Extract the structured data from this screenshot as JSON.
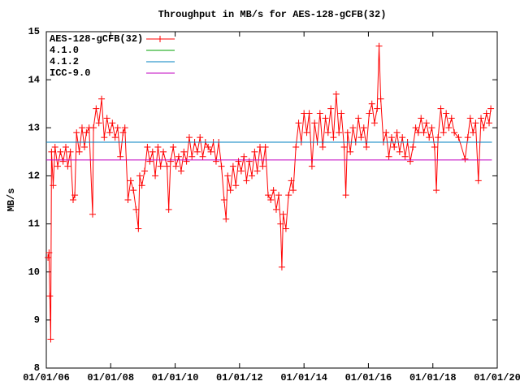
{
  "chart_data": {
    "type": "line",
    "title": "Throughput in MB/s for AES-128-gCFB(32)",
    "y_label": "MB/s",
    "xlim": [
      "2006-01-01",
      "2020-01-01"
    ],
    "xticks": [
      {
        "value": "2006-01-01",
        "label": "01/01/06"
      },
      {
        "value": "2008-01-01",
        "label": "01/01/08"
      },
      {
        "value": "2010-01-01",
        "label": "01/01/10"
      },
      {
        "value": "2012-01-01",
        "label": "01/01/12"
      },
      {
        "value": "2014-01-01",
        "label": "01/01/14"
      },
      {
        "value": "2016-01-01",
        "label": "01/01/16"
      },
      {
        "value": "2018-01-01",
        "label": "01/01/18"
      },
      {
        "value": "2020-01-01",
        "label": "01/01/20"
      }
    ],
    "ylim": [
      8,
      15
    ],
    "yticks": [
      8,
      9,
      10,
      11,
      12,
      13,
      14,
      15
    ],
    "grid": false,
    "legend": "top-left",
    "series": [
      {
        "name": "AES-128-gCFB(32)",
        "color": "#ff0000",
        "marker": "+",
        "x": [
          "2006-01-20",
          "2006-02-01",
          "2006-02-10",
          "2006-02-20",
          "2006-03-01",
          "2006-03-20",
          "2006-04-10",
          "2006-05-10",
          "2006-06-10",
          "2006-07-10",
          "2006-08-10",
          "2006-09-01",
          "2006-10-01",
          "2006-11-01",
          "2006-11-20",
          "2006-12-10",
          "2007-01-10",
          "2007-02-10",
          "2007-03-10",
          "2007-04-01",
          "2007-05-01",
          "2007-06-10",
          "2007-06-20",
          "2007-07-20",
          "2007-08-20",
          "2007-09-20",
          "2007-10-20",
          "2007-11-20",
          "2007-12-20",
          "2008-01-20",
          "2008-02-20",
          "2008-03-20",
          "2008-04-20",
          "2008-05-20",
          "2008-06-10",
          "2008-07-15",
          "2008-08-15",
          "2008-09-15",
          "2008-10-15",
          "2008-11-10",
          "2008-11-25",
          "2008-12-20",
          "2009-01-20",
          "2009-02-20",
          "2009-03-20",
          "2009-04-20",
          "2009-05-20",
          "2009-06-20",
          "2009-07-20",
          "2009-08-20",
          "2009-10-01",
          "2009-10-20",
          "2009-11-10",
          "2009-12-10",
          "2010-01-10",
          "2010-02-10",
          "2010-03-10",
          "2010-04-10",
          "2010-05-10",
          "2010-06-10",
          "2010-07-10",
          "2010-08-10",
          "2010-09-10",
          "2010-10-10",
          "2010-11-10",
          "2010-12-10",
          "2011-01-10",
          "2011-02-10",
          "2011-03-10",
          "2011-04-10",
          "2011-05-10",
          "2011-06-10",
          "2011-07-10",
          "2011-08-01",
          "2011-08-20",
          "2011-09-20",
          "2011-10-20",
          "2011-11-20",
          "2011-12-20",
          "2012-01-20",
          "2012-02-20",
          "2012-03-20",
          "2012-04-20",
          "2012-05-20",
          "2012-06-20",
          "2012-07-20",
          "2012-08-20",
          "2012-09-20",
          "2012-10-20",
          "2012-11-20",
          "2012-12-20",
          "2013-01-20",
          "2013-02-20",
          "2013-03-20",
          "2013-04-10",
          "2013-04-25",
          "2013-05-10",
          "2013-06-10",
          "2013-07-10",
          "2013-08-10",
          "2013-09-01",
          "2013-10-01",
          "2013-11-01",
          "2013-12-01",
          "2014-01-01",
          "2014-02-01",
          "2014-03-01",
          "2014-04-01",
          "2014-05-01",
          "2014-06-01",
          "2014-07-01",
          "2014-08-01",
          "2014-09-01",
          "2014-10-01",
          "2014-11-01",
          "2014-12-01",
          "2015-01-01",
          "2015-02-01",
          "2015-03-01",
          "2015-04-01",
          "2015-04-20",
          "2015-05-10",
          "2015-06-10",
          "2015-07-10",
          "2015-08-10",
          "2015-09-10",
          "2015-10-10",
          "2015-11-10",
          "2015-12-10",
          "2016-01-10",
          "2016-02-10",
          "2016-03-10",
          "2016-04-10",
          "2016-05-01",
          "2016-05-20",
          "2016-06-20",
          "2016-07-20",
          "2016-08-20",
          "2016-09-20",
          "2016-10-20",
          "2016-11-20",
          "2016-12-20",
          "2017-01-20",
          "2017-02-20",
          "2017-03-20",
          "2017-04-20",
          "2017-05-20",
          "2017-06-20",
          "2017-07-20",
          "2017-08-20",
          "2017-09-20",
          "2017-10-20",
          "2017-11-20",
          "2017-12-20",
          "2018-01-20",
          "2018-02-10",
          "2018-03-01",
          "2018-04-01",
          "2018-05-01",
          "2018-06-01",
          "2018-07-01",
          "2018-08-01",
          "2018-09-01",
          "2018-10-20",
          "2019-01-01",
          "2019-02-01",
          "2019-03-01",
          "2019-04-01",
          "2019-05-01",
          "2019-06-01",
          "2019-07-01",
          "2019-08-01",
          "2019-09-01",
          "2019-10-01",
          "2019-10-20"
        ],
        "values": [
          10.3,
          10.4,
          9.5,
          8.6,
          12.5,
          11.8,
          12.6,
          12.2,
          12.5,
          12.3,
          12.6,
          12.2,
          12.5,
          11.5,
          11.6,
          12.9,
          12.5,
          13.0,
          12.6,
          12.9,
          13.0,
          11.2,
          13.0,
          13.4,
          13.1,
          13.6,
          12.8,
          13.2,
          12.9,
          13.1,
          12.8,
          13.0,
          12.4,
          12.9,
          13.0,
          11.5,
          11.9,
          11.7,
          11.3,
          10.9,
          12.0,
          11.8,
          12.1,
          12.6,
          12.3,
          12.5,
          12.0,
          12.6,
          12.2,
          12.5,
          12.2,
          11.3,
          12.3,
          12.6,
          12.2,
          12.4,
          12.1,
          12.5,
          12.3,
          12.8,
          12.4,
          12.7,
          12.5,
          12.8,
          12.4,
          12.7,
          12.6,
          12.5,
          12.7,
          12.3,
          12.7,
          12.2,
          11.5,
          11.1,
          12.0,
          11.7,
          12.2,
          11.8,
          12.3,
          12.1,
          12.4,
          11.9,
          12.3,
          12.0,
          12.5,
          12.1,
          12.6,
          12.2,
          12.6,
          11.6,
          11.5,
          11.7,
          11.3,
          11.6,
          11.0,
          10.1,
          11.2,
          10.9,
          11.6,
          11.9,
          11.7,
          12.6,
          13.1,
          12.7,
          13.3,
          12.9,
          13.3,
          12.2,
          13.1,
          12.7,
          13.3,
          12.6,
          13.2,
          12.9,
          13.4,
          12.8,
          13.7,
          12.9,
          13.3,
          12.6,
          11.6,
          12.9,
          12.5,
          13.0,
          12.7,
          13.2,
          12.8,
          13.0,
          12.6,
          13.3,
          13.5,
          13.1,
          13.4,
          14.7,
          13.6,
          12.7,
          12.9,
          12.4,
          12.8,
          12.6,
          12.9,
          12.5,
          12.8,
          12.4,
          12.7,
          12.3,
          12.6,
          13.0,
          12.9,
          13.2,
          12.9,
          13.1,
          12.8,
          13.0,
          12.6,
          11.7,
          12.8,
          13.4,
          12.9,
          13.3,
          13.0,
          13.2,
          12.9,
          12.8,
          12.35,
          12.8,
          13.2,
          12.9,
          13.1,
          11.9,
          13.2,
          13.0,
          13.3,
          13.1,
          13.4
        ]
      },
      {
        "name": "4.1.0",
        "color": "#00a000",
        "x": [
          "2006-01-01",
          "2019-11-01"
        ],
        "values": [
          12.7,
          12.7
        ]
      },
      {
        "name": "4.1.2",
        "color": "#0080c0",
        "x": [
          "2006-01-01",
          "2019-11-01"
        ],
        "values": [
          12.7,
          12.7
        ]
      },
      {
        "name": "ICC-9.0",
        "color": "#c000c0",
        "x": [
          "2006-01-01",
          "2019-11-01"
        ],
        "values": [
          12.33,
          12.33
        ]
      }
    ]
  }
}
